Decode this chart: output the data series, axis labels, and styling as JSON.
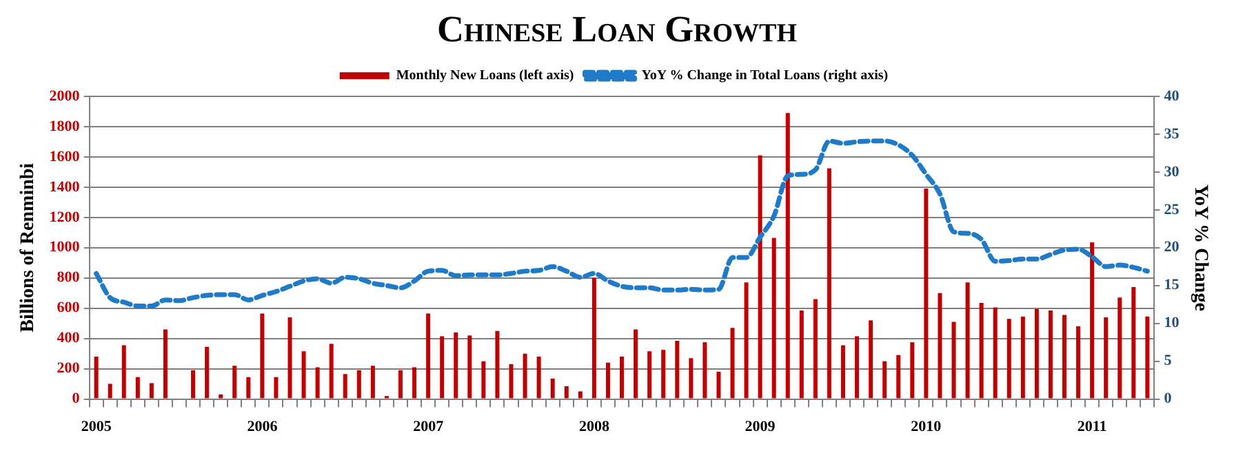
{
  "chart_data": {
    "type": "bar",
    "title": "Chinese Loan Growth",
    "ylabel": "Billions of Renminbi",
    "y2label": "YoY % Change",
    "categories": [
      "2005",
      null,
      null,
      null,
      null,
      null,
      null,
      null,
      null,
      null,
      null,
      null,
      "2006",
      null,
      null,
      null,
      null,
      null,
      null,
      null,
      null,
      null,
      null,
      null,
      "2007",
      null,
      null,
      null,
      null,
      null,
      null,
      null,
      null,
      null,
      null,
      null,
      "2008",
      null,
      null,
      null,
      null,
      null,
      null,
      null,
      null,
      null,
      null,
      null,
      "2009",
      null,
      null,
      null,
      null,
      null,
      null,
      null,
      null,
      null,
      null,
      null,
      "2010",
      null,
      null,
      null,
      null,
      null,
      null,
      null,
      null,
      null,
      null,
      null,
      "2011",
      null,
      null,
      null,
      null
    ],
    "series": [
      {
        "name": "Monthly New Loans (left axis)",
        "color": "#c00000",
        "values": [
          280,
          100,
          355,
          145,
          105,
          460,
          0,
          190,
          345,
          30,
          220,
          145,
          565,
          145,
          540,
          315,
          210,
          365,
          165,
          190,
          220,
          20,
          190,
          210,
          565,
          415,
          440,
          420,
          250,
          450,
          230,
          300,
          280,
          135,
          85,
          50,
          800,
          240,
          280,
          460,
          315,
          325,
          385,
          270,
          375,
          180,
          470,
          770,
          1610,
          1065,
          1890,
          585,
          660,
          1525,
          355,
          415,
          520,
          250,
          290,
          375,
          1390,
          700,
          510,
          770,
          635,
          605,
          530,
          545,
          595,
          585,
          555,
          480,
          1035,
          540,
          670,
          740,
          545
        ]
      },
      {
        "name": "YoY % Change in Total Loans (right axis)",
        "type": "line",
        "axis": "y2",
        "color": "#1f7bc8",
        "line_style": "dashed",
        "marker": "none",
        "values": [
          16.6,
          13.4,
          12.8,
          12.3,
          12.3,
          13.1,
          13.0,
          13.4,
          13.7,
          13.8,
          13.8,
          13.1,
          13.7,
          14.2,
          14.9,
          15.6,
          15.9,
          15.3,
          16.1,
          15.9,
          15.3,
          15.0,
          14.7,
          15.6,
          16.9,
          17.0,
          16.3,
          16.4,
          16.4,
          16.4,
          16.6,
          16.9,
          17.0,
          17.5,
          16.9,
          16.1,
          16.6,
          15.6,
          14.9,
          14.7,
          14.7,
          14.4,
          14.4,
          14.5,
          14.4,
          14.5,
          18.7,
          18.7,
          21.4,
          24.2,
          29.5,
          29.7,
          30.3,
          34.1,
          33.8,
          34.0,
          34.1,
          34.1,
          33.6,
          32.2,
          29.7,
          27.1,
          22.1,
          21.9,
          21.1,
          18.2,
          18.3,
          18.5,
          18.5,
          19.1,
          19.7,
          19.8,
          18.8,
          17.5,
          17.7,
          17.4,
          16.9
        ]
      }
    ],
    "ylim": [
      0,
      2000
    ],
    "yticks": [
      0,
      200,
      400,
      600,
      800,
      1000,
      1200,
      1400,
      1600,
      1800,
      2000
    ],
    "y2lim": [
      0,
      40
    ],
    "y2ticks": [
      0,
      5,
      10,
      15,
      20,
      25,
      30,
      35,
      40
    ],
    "grid": "y",
    "legend": "top"
  }
}
